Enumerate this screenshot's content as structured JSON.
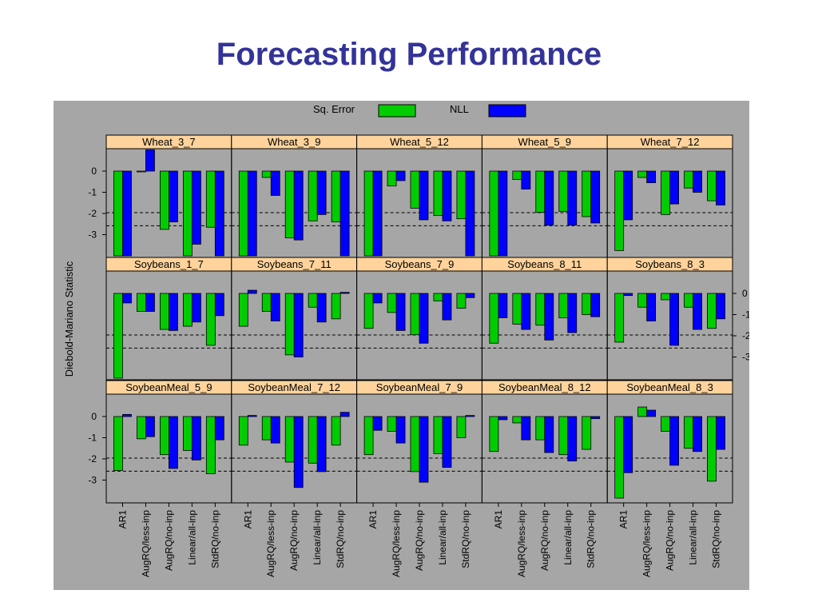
{
  "title": "Forecasting Performance",
  "colors": {
    "title": "#333399",
    "panel_bg": "#a6a6a6",
    "strip_bg": "#ffd39b",
    "sq_error": "#00cc00",
    "nll": "#0000ff"
  },
  "chart_data": {
    "type": "bar",
    "layout": "faceted grid, 3 rows x 5 columns",
    "ylabel": "Diebold-Mariano Statistic",
    "y_ticks": [
      "0",
      "-1",
      "-2",
      "-3"
    ],
    "reference_lines": [
      -1.96,
      -2.58
    ],
    "legend": {
      "placement": "top-center",
      "entries": [
        "Sq. Error",
        "NLL"
      ]
    },
    "categories": [
      "AR1",
      "AugRQ/less-inp",
      "AugRQ/no-inp",
      "Linear/all-inp",
      "StdRQ/no-inp"
    ],
    "series_names": [
      "Sq. Error",
      "NLL"
    ],
    "panels": [
      {
        "title": "Wheat_3_7",
        "sq_error": [
          -4.0,
          0.0,
          -2.75,
          -4.0,
          -2.65
        ],
        "nll": [
          -4.0,
          1.0,
          -2.4,
          -3.45,
          -4.0
        ]
      },
      {
        "title": "Wheat_3_9",
        "sq_error": [
          -4.0,
          -0.3,
          -3.15,
          -2.35,
          -2.4
        ],
        "nll": [
          -4.0,
          -1.15,
          -3.25,
          -2.05,
          -4.0
        ]
      },
      {
        "title": "Wheat_5_12",
        "sq_error": [
          -4.0,
          -0.7,
          -1.75,
          -2.1,
          -2.25
        ],
        "nll": [
          -4.0,
          -0.45,
          -2.3,
          -2.35,
          -4.0
        ]
      },
      {
        "title": "Wheat_5_9",
        "sq_error": [
          -4.0,
          -0.4,
          -1.95,
          -1.9,
          -2.15
        ],
        "nll": [
          -4.0,
          -0.85,
          -2.55,
          -2.55,
          -2.45
        ]
      },
      {
        "title": "Wheat_7_12",
        "sq_error": [
          -3.75,
          -0.3,
          -2.05,
          -0.8,
          -1.4
        ],
        "nll": [
          -2.3,
          -0.55,
          -1.55,
          -1.0,
          -1.6
        ]
      },
      {
        "title": "Soybeans_1_7",
        "sq_error": [
          -4.0,
          -0.85,
          -1.7,
          -1.55,
          -2.45
        ],
        "nll": [
          -0.45,
          -0.85,
          -1.75,
          -1.35,
          -1.05
        ]
      },
      {
        "title": "Soybeans_7_11",
        "sq_error": [
          -1.55,
          -0.85,
          -2.9,
          -0.65,
          -1.2
        ],
        "nll": [
          0.15,
          -1.3,
          -3.0,
          -1.35,
          0.05
        ]
      },
      {
        "title": "Soybeans_7_9",
        "sq_error": [
          -1.65,
          -0.9,
          -1.95,
          -0.35,
          -0.7
        ],
        "nll": [
          -0.45,
          -1.75,
          -2.35,
          -1.25,
          -0.2
        ]
      },
      {
        "title": "Soybeans_8_11",
        "sq_error": [
          -2.35,
          -1.45,
          -1.5,
          -1.15,
          -1.0
        ],
        "nll": [
          -1.15,
          -1.7,
          -2.2,
          -1.85,
          -1.1
        ]
      },
      {
        "title": "Soybeans_8_3",
        "sq_error": [
          -2.3,
          -0.65,
          -0.3,
          -0.65,
          -1.65
        ],
        "nll": [
          -0.1,
          -1.3,
          -2.45,
          -1.7,
          -1.2
        ]
      },
      {
        "title": "SoybeanMeal_5_9",
        "sq_error": [
          -2.55,
          -1.05,
          -1.8,
          -1.6,
          -2.7
        ],
        "nll": [
          0.1,
          -0.95,
          -2.45,
          -2.05,
          -1.1
        ]
      },
      {
        "title": "SoybeanMeal_7_12",
        "sq_error": [
          -1.35,
          -1.1,
          -2.15,
          -2.2,
          -1.35
        ],
        "nll": [
          0.05,
          -1.25,
          -3.35,
          -2.6,
          0.2
        ]
      },
      {
        "title": "SoybeanMeal_7_9",
        "sq_error": [
          -1.8,
          -0.7,
          -2.6,
          -1.75,
          -1.0
        ],
        "nll": [
          -0.65,
          -1.25,
          -3.1,
          -2.4,
          0.05
        ]
      },
      {
        "title": "SoybeanMeal_8_12",
        "sq_error": [
          -1.65,
          -0.3,
          -1.1,
          -1.8,
          -1.55
        ],
        "nll": [
          -0.15,
          -1.1,
          -1.7,
          -2.1,
          -0.1
        ]
      },
      {
        "title": "SoybeanMeal_8_3",
        "sq_error": [
          -3.85,
          0.45,
          -0.7,
          -1.5,
          -3.05
        ],
        "nll": [
          -2.65,
          0.3,
          -2.3,
          -1.65,
          -1.55
        ]
      }
    ]
  }
}
